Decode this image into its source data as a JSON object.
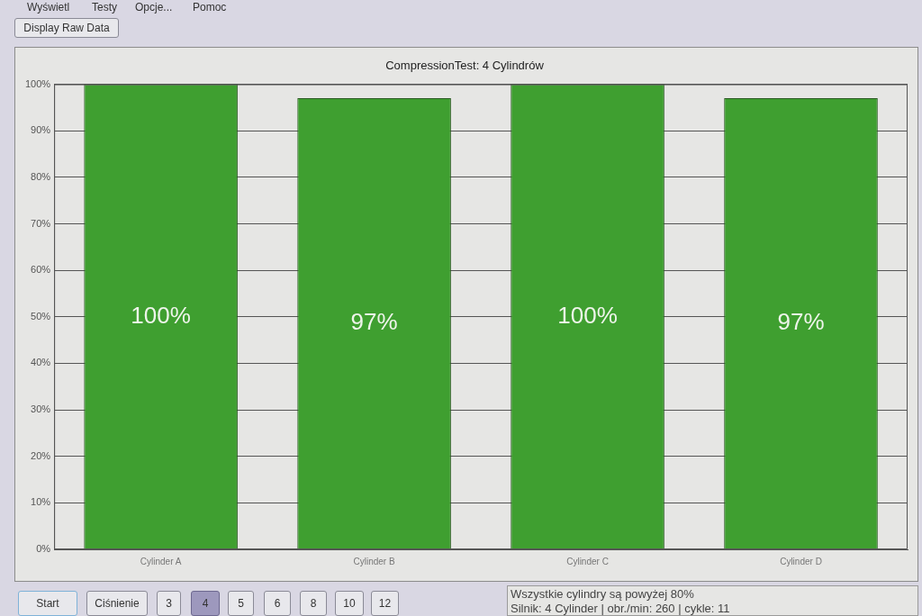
{
  "chart_data": {
    "type": "bar",
    "title": "CompressionTest: 4 Cylindrów",
    "categories": [
      "Cylinder A",
      "Cylinder B",
      "Cylinder C",
      "Cylinder D"
    ],
    "values": [
      100,
      97,
      100,
      97
    ],
    "value_labels": [
      "100%",
      "97%",
      "100%",
      "97%"
    ],
    "color": "#3f9f30",
    "ylim": [
      0,
      100
    ],
    "yticks": [
      {
        "value": 0,
        "label": "0%"
      },
      {
        "value": 10,
        "label": "10%"
      },
      {
        "value": 20,
        "label": "20%"
      },
      {
        "value": 30,
        "label": "30%"
      },
      {
        "value": 40,
        "label": "40%"
      },
      {
        "value": 50,
        "label": "50%"
      },
      {
        "value": 60,
        "label": "60%"
      },
      {
        "value": 70,
        "label": "70%"
      },
      {
        "value": 80,
        "label": "80%"
      },
      {
        "value": 90,
        "label": "90%"
      },
      {
        "value": 100,
        "label": "100%"
      }
    ],
    "grid": "y",
    "annotations": [
      "Wyświetl",
      "Testy",
      "Opcje...",
      "Pomoc",
      "Display Raw Data",
      "Start",
      "Ciśnienie",
      "3",
      "4",
      "5",
      "6",
      "8",
      "10",
      "12",
      "Wszystkie cylindry są powyżej 80%",
      "Silnik: 4 Cylinder | obr./min: 260 | cykle: 11"
    ]
  }
}
